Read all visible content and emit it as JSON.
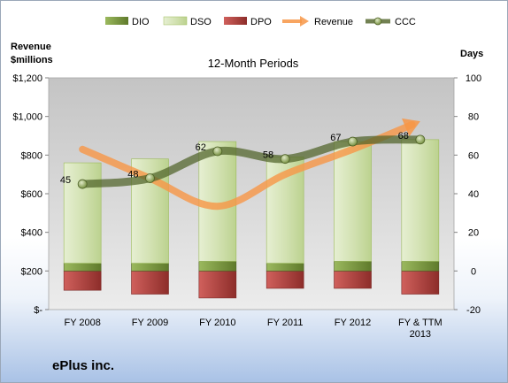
{
  "chart_data": {
    "type": "bar",
    "title": "12-Month Periods",
    "company": "ePlus inc.",
    "left_axis_title": [
      "Revenue",
      "$millions"
    ],
    "right_axis_title": "Days",
    "categories": [
      "FY 2008",
      "FY 2009",
      "FY 2010",
      "FY 2011",
      "FY 2012",
      [
        "FY & TTM",
        "2013"
      ]
    ],
    "left_ylim": [
      0,
      1200
    ],
    "left_ticks": [
      0,
      200,
      400,
      600,
      800,
      1000,
      1200
    ],
    "left_tick_labels": [
      "$-",
      "$200",
      "$400",
      "$600",
      "$800",
      "$1,000",
      "$1,200"
    ],
    "right_ylim": [
      -20,
      100
    ],
    "right_ticks": [
      -20,
      0,
      20,
      40,
      60,
      80,
      100
    ],
    "right_tick_labels": [
      "-20",
      "0",
      "20",
      "40",
      "60",
      "80",
      "100"
    ],
    "grid": false,
    "legend_position": "top",
    "series": [
      {
        "name": "DIO",
        "axis": "right",
        "kind": "stacked-bar",
        "color": "#77933c",
        "values": [
          4,
          4,
          5,
          4,
          5,
          5
        ]
      },
      {
        "name": "DSO",
        "axis": "right",
        "kind": "stacked-bar",
        "color": "#d7e4bd",
        "values": [
          52,
          54,
          62,
          55,
          62,
          63
        ]
      },
      {
        "name": "DPO",
        "axis": "right",
        "kind": "negative-bar",
        "color": "#c0504d",
        "values": [
          -10,
          -12,
          -14,
          -9,
          -9,
          -12
        ]
      },
      {
        "name": "Revenue",
        "axis": "left",
        "kind": "line",
        "color": "#f79646",
        "values": [
          830,
          680,
          535,
          700,
          830,
          975
        ]
      },
      {
        "name": "CCC",
        "axis": "right",
        "kind": "line-markers",
        "color": "#4f6228",
        "values": [
          45,
          48,
          62,
          58,
          67,
          68
        ]
      }
    ],
    "ccc_labels": [
      "45",
      "48",
      "62",
      "58",
      "67",
      "68"
    ]
  }
}
